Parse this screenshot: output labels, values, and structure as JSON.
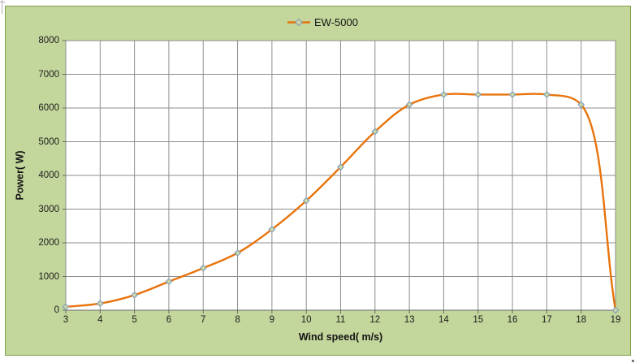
{
  "colors": {
    "chart_background": "#c3d69b",
    "chart_border": "#84a04c",
    "plot_background": "#ffffff",
    "gridline": "#8e8e8e",
    "axis_line": "#686868",
    "tick_text": "#1c1c1c",
    "series_line": "#e8730c",
    "marker_fill": "#cdd9a4",
    "marker_stroke": "#85a0bb"
  },
  "legend": {
    "label": "EW-5000"
  },
  "chart_data": {
    "type": "line",
    "smooth": true,
    "title": "",
    "xlabel": "Wind speed( m/s)",
    "ylabel": "Power( W)",
    "x": [
      3,
      4,
      5,
      6,
      7,
      8,
      9,
      10,
      11,
      12,
      13,
      14,
      15,
      16,
      17,
      18,
      19
    ],
    "series": [
      {
        "name": "EW-5000",
        "marker": "diamond",
        "values": [
          100,
          200,
          450,
          850,
          1250,
          1700,
          2400,
          3250,
          4250,
          5300,
          6100,
          6400,
          6400,
          6400,
          6400,
          6100,
          0
        ]
      }
    ],
    "xlim": [
      3,
      19
    ],
    "ylim": [
      0,
      8000
    ],
    "x_ticks": [
      3,
      4,
      5,
      6,
      7,
      8,
      9,
      10,
      11,
      12,
      13,
      14,
      15,
      16,
      17,
      18,
      19
    ],
    "y_ticks": [
      0,
      1000,
      2000,
      3000,
      4000,
      5000,
      6000,
      7000,
      8000
    ],
    "grid": true,
    "legend_position": "top-center"
  }
}
